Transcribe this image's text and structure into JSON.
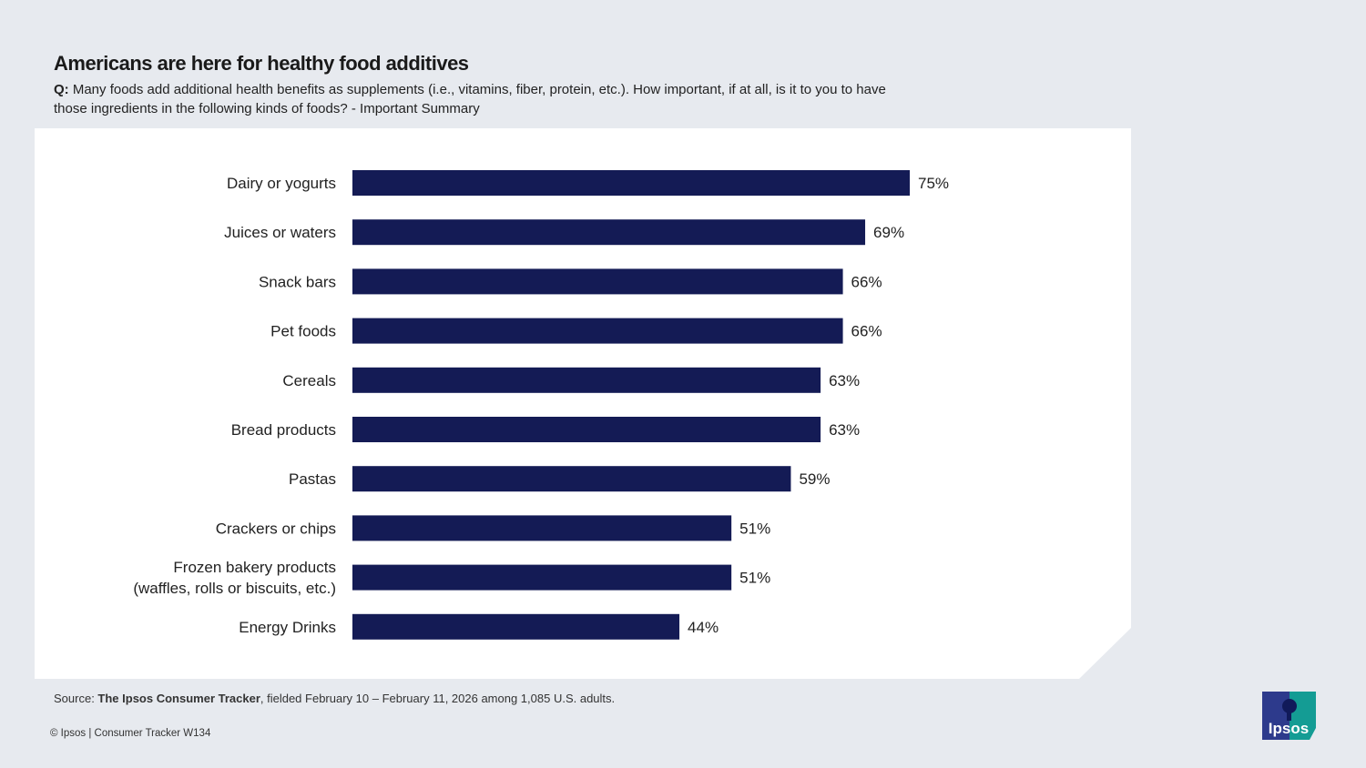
{
  "header": {
    "title": "Americans are here for healthy food additives",
    "question_prefix": "Q:",
    "question": "Many foods add additional health benefits as supplements (i.e., vitamins, fiber, protein, etc.). How important, if at all, is it to you to have those ingredients in the following kinds of foods? - Important Summary"
  },
  "footer": {
    "source_prefix": "Source: ",
    "source_bold": "The Ipsos Consumer Tracker",
    "source_rest": ", fielded February 10 – February 11, 2026 among 1,085 U.S. adults.",
    "copyright": "© Ipsos | Consumer Tracker W134",
    "logo_text": "Ipsos"
  },
  "chart_data": {
    "type": "bar",
    "orientation": "horizontal",
    "categories": [
      "Dairy or yogurts",
      "Juices or waters",
      "Snack bars",
      "Pet foods",
      "Cereals",
      "Bread products",
      "Pastas",
      "Crackers or chips",
      "Frozen bakery products\n(waffles, rolls or biscuits, etc.)",
      "Energy Drinks"
    ],
    "values": [
      75,
      69,
      66,
      66,
      63,
      63,
      59,
      51,
      51,
      44
    ],
    "data_labels": [
      "75%",
      "69%",
      "66%",
      "66%",
      "63%",
      "63%",
      "59%",
      "51%",
      "51%",
      "44%"
    ],
    "unit": "%",
    "grid": false,
    "bar_color": "#141b55"
  }
}
